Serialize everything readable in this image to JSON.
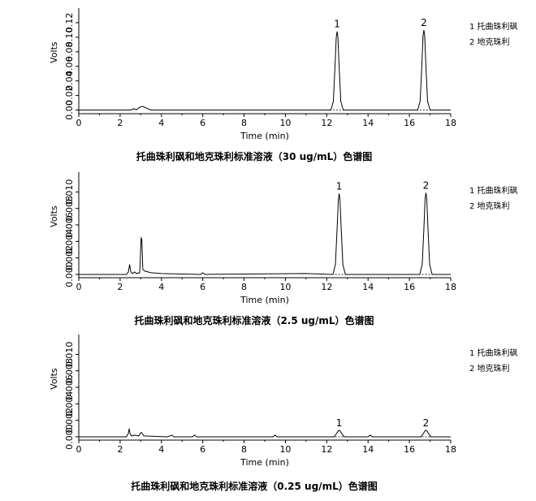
{
  "chart_data": [
    {
      "type": "line",
      "title": "托曲珠利砜和地克珠利标准溶液（30 ug/mL）色谱图",
      "xlabel": "Time (min)",
      "ylabel": "Volts",
      "xlim": [
        0,
        18
      ],
      "ylim": [
        -0.005,
        0.14
      ],
      "x_ticks": [
        "0",
        "2",
        "4",
        "6",
        "8",
        "10",
        "12",
        "14",
        "16",
        "18"
      ],
      "y_ticks": [
        "0.00",
        "0.02",
        "0.04",
        "0.06",
        "0.08",
        "0.10",
        "0.12"
      ],
      "legend": [
        "1  托曲珠利砜",
        "2  地克珠利"
      ],
      "peak_labels": [
        "1",
        "2"
      ],
      "series": [
        {
          "x": [
            0,
            2.5,
            2.6,
            2.68,
            2.72,
            2.8,
            2.95,
            3.1,
            3.25,
            3.4,
            3.5,
            12.2,
            12.32,
            12.4,
            12.46,
            12.5,
            12.54,
            12.6,
            12.68,
            12.8,
            16.4,
            16.52,
            16.6,
            16.66,
            16.7,
            16.74,
            16.8,
            16.88,
            17.0,
            18
          ],
          "y": [
            0,
            0,
            0.001,
            0.002,
            0.001,
            0.0005,
            0.004,
            0.005,
            0.003,
            0.001,
            0,
            0,
            0.012,
            0.06,
            0.1,
            0.108,
            0.1,
            0.06,
            0.012,
            0,
            0,
            0.012,
            0.06,
            0.102,
            0.11,
            0.102,
            0.06,
            0.012,
            0,
            0
          ]
        }
      ],
      "peaks": [
        [
          12.5,
          0.108
        ],
        [
          16.7,
          0.11
        ]
      ]
    },
    {
      "type": "line",
      "title": "托曲珠利砜和地克珠利标准溶液（2.5 ug/mL）色谱图",
      "xlabel": "Time (min)",
      "ylabel": "Volts",
      "xlim": [
        0,
        18
      ],
      "ylim": [
        -0.0004,
        0.0124
      ],
      "x_ticks": [
        "0",
        "2",
        "4",
        "6",
        "8",
        "10",
        "12",
        "14",
        "16",
        "18"
      ],
      "y_ticks": [
        "0.000",
        "0.002",
        "0.004",
        "0.006",
        "0.008",
        "0.010"
      ],
      "legend": [
        "1  托曲珠利砜",
        "2  地克珠利"
      ],
      "peak_labels": [
        "1",
        "2"
      ],
      "series": [
        {
          "x": [
            0,
            2.3,
            2.4,
            2.46,
            2.52,
            2.6,
            2.7,
            2.8,
            2.95,
            3.02,
            3.05,
            3.1,
            3.2,
            3.5,
            4.0,
            5.9,
            6.0,
            6.1,
            11.0,
            12.3,
            12.42,
            12.5,
            12.56,
            12.6,
            12.64,
            12.7,
            12.78,
            12.9,
            16.5,
            16.62,
            16.7,
            16.76,
            16.8,
            16.84,
            16.9,
            16.98,
            17.1,
            18
          ],
          "y": [
            0,
            0,
            0.0003,
            0.0012,
            0.0003,
            0.0001,
            0.0003,
            0.0001,
            0.0002,
            0.0045,
            0.0042,
            0.0006,
            0.0004,
            0.0002,
            0.0001,
            0.0,
            0.0002,
            0.0,
            0.0001,
            0,
            0.0012,
            0.0055,
            0.009,
            0.0098,
            0.009,
            0.0055,
            0.0012,
            0,
            0,
            0.0012,
            0.0055,
            0.0092,
            0.0099,
            0.0092,
            0.0055,
            0.0012,
            0,
            0
          ]
        }
      ],
      "peaks": [
        [
          12.6,
          0.0098
        ],
        [
          16.8,
          0.0099
        ]
      ]
    },
    {
      "type": "line",
      "title": "托曲珠利砜和地克珠利标准溶液（0.25 ug/mL）色谱图",
      "xlabel": "Time (min)",
      "ylabel": "Volts",
      "xlim": [
        0,
        18
      ],
      "ylim": [
        -0.0004,
        0.0124
      ],
      "x_ticks": [
        "0",
        "2",
        "4",
        "6",
        "8",
        "10",
        "12",
        "14",
        "16",
        "18"
      ],
      "y_ticks": [
        "0.000",
        "0.002",
        "0.004",
        "0.006",
        "0.008",
        "0.010"
      ],
      "legend": [
        "1  托曲珠利砜",
        "2  地克珠利"
      ],
      "peak_labels": [
        "1",
        "2"
      ],
      "series": [
        {
          "x": [
            0,
            1.0,
            2.3,
            2.4,
            2.44,
            2.48,
            2.55,
            2.7,
            2.9,
            3.0,
            3.05,
            3.15,
            4.3,
            4.5,
            4.6,
            5.5,
            5.6,
            5.7,
            9.4,
            9.5,
            9.6,
            12.35,
            12.45,
            12.55,
            12.6,
            12.65,
            12.75,
            12.85,
            14.0,
            14.1,
            14.2,
            16.55,
            16.65,
            16.75,
            16.8,
            16.85,
            16.95,
            17.05,
            18
          ],
          "y": [
            0,
            0.0,
            0,
            0.0004,
            0.001,
            0.0004,
            0.0001,
            0.0002,
            0.0001,
            0.0005,
            0.0005,
            0.0001,
            0,
            0.0002,
            0.0,
            0,
            0.0002,
            0,
            0,
            0.0002,
            0,
            0,
            0.0003,
            0.0007,
            0.0008,
            0.0007,
            0.0003,
            0,
            0,
            0.0002,
            0,
            0,
            0.0003,
            0.0007,
            0.0008,
            0.0007,
            0.0003,
            0,
            0
          ]
        }
      ],
      "peaks": [
        [
          12.6,
          0.0008
        ],
        [
          16.8,
          0.0008
        ]
      ]
    }
  ]
}
